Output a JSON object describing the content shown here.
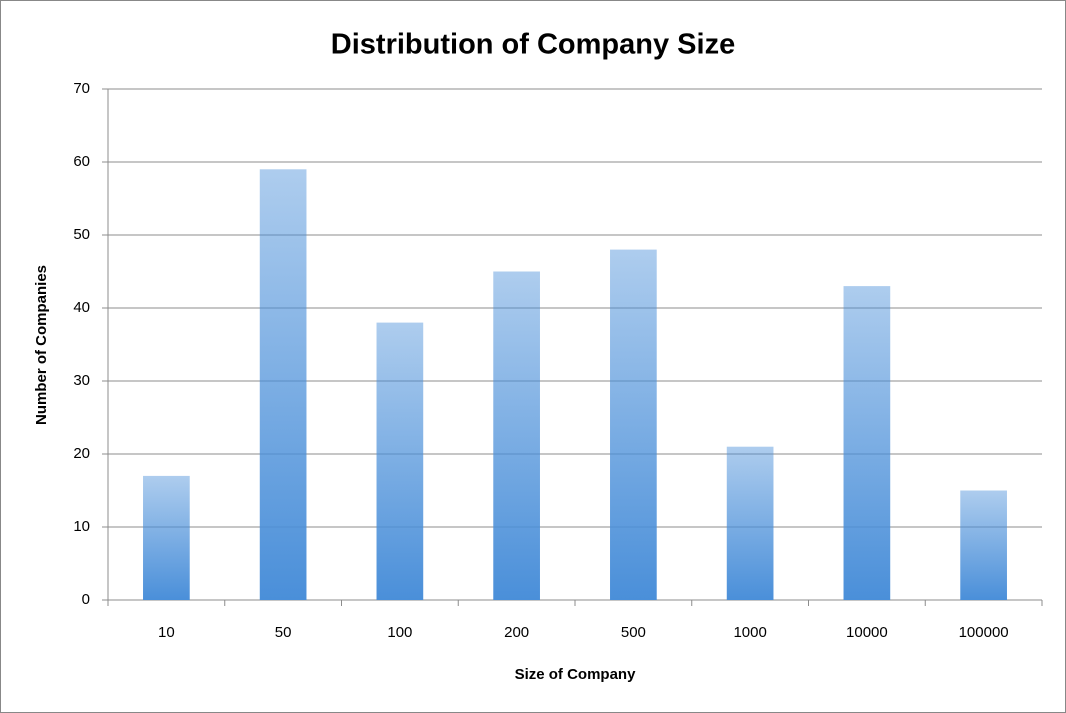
{
  "chart_data": {
    "type": "bar",
    "title": "Distribution of Company Size",
    "x_label": "Size of Company",
    "y_label": "Number of Companies",
    "categories": [
      "10",
      "50",
      "100",
      "200",
      "500",
      "1000",
      "10000",
      "100000"
    ],
    "values": [
      17,
      59,
      38,
      45,
      48,
      21,
      43,
      15
    ],
    "color": "#4a8fd9",
    "ylim": [
      0,
      70
    ],
    "yticks": [
      0,
      10,
      20,
      30,
      40,
      50,
      60,
      70
    ],
    "grid": true
  }
}
